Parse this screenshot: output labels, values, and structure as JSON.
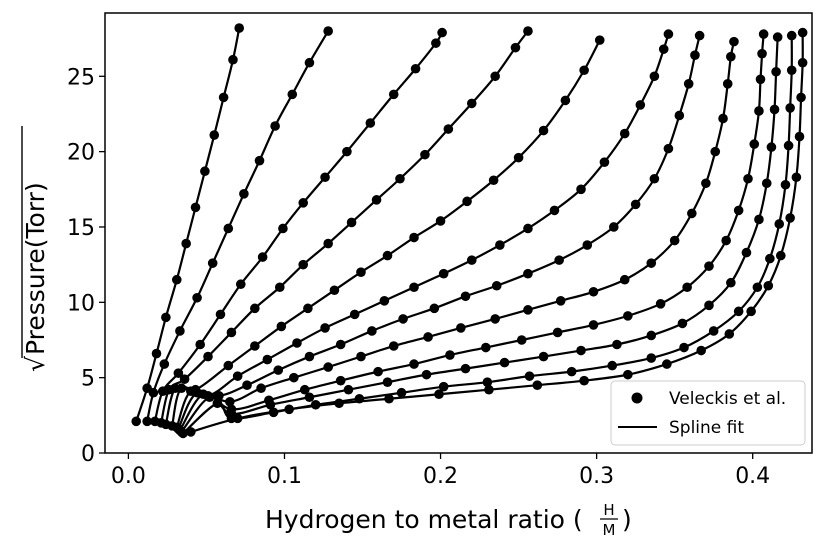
{
  "chart_data": {
    "type": "line",
    "title": "",
    "xlabel": "Hydrogen to metal ratio (",
    "xlabel_frac_num": "H",
    "xlabel_frac_den": "M",
    "xlabel_close": ")",
    "ylabel": "Pressure(Torr)",
    "ylabel_prefix": "√",
    "xlim": [
      -0.015,
      0.438
    ],
    "ylim": [
      0,
      29.2
    ],
    "xticks": [
      0.0,
      0.1,
      0.2,
      0.3,
      0.4
    ],
    "xtick_labels": [
      "0.0",
      "0.1",
      "0.2",
      "0.3",
      "0.4"
    ],
    "yticks": [
      0,
      5,
      10,
      15,
      20,
      25
    ],
    "ytick_labels": [
      "0",
      "5",
      "10",
      "15",
      "20",
      "25"
    ],
    "grid": false,
    "legend": {
      "placement": "lower-right",
      "entries": [
        {
          "label": "Veleckis et al.",
          "kind": "marker"
        },
        {
          "label": "Spline fit",
          "kind": "line"
        }
      ]
    },
    "series": [
      {
        "color": "#000000",
        "points": [
          [
            0.005,
            2.1
          ],
          [
            0.012,
            4.3
          ],
          [
            0.018,
            6.6
          ],
          [
            0.024,
            9.0
          ],
          [
            0.031,
            11.5
          ],
          [
            0.037,
            13.9
          ],
          [
            0.043,
            16.3
          ],
          [
            0.049,
            18.7
          ],
          [
            0.055,
            21.1
          ],
          [
            0.061,
            23.6
          ],
          [
            0.067,
            26.1
          ],
          [
            0.071,
            28.2
          ]
        ]
      },
      {
        "color": "#000000",
        "points": [
          [
            0.012,
            2.1
          ],
          [
            0.016,
            4.0
          ],
          [
            0.023,
            5.9
          ],
          [
            0.033,
            8.1
          ],
          [
            0.044,
            10.3
          ],
          [
            0.054,
            12.6
          ],
          [
            0.064,
            14.9
          ],
          [
            0.074,
            17.2
          ],
          [
            0.084,
            19.4
          ],
          [
            0.094,
            21.7
          ],
          [
            0.105,
            23.8
          ],
          [
            0.116,
            25.9
          ],
          [
            0.128,
            28.0
          ]
        ]
      },
      {
        "color": "#000000",
        "points": [
          [
            0.017,
            2.1
          ],
          [
            0.022,
            4.1
          ],
          [
            0.032,
            5.3
          ],
          [
            0.046,
            7.2
          ],
          [
            0.059,
            9.2
          ],
          [
            0.072,
            11.2
          ],
          [
            0.086,
            13.0
          ],
          [
            0.099,
            14.9
          ],
          [
            0.112,
            16.6
          ],
          [
            0.126,
            18.3
          ],
          [
            0.14,
            20.0
          ],
          [
            0.155,
            21.9
          ],
          [
            0.17,
            23.8
          ],
          [
            0.184,
            25.5
          ],
          [
            0.197,
            27.2
          ],
          [
            0.201,
            27.9
          ]
        ]
      },
      {
        "color": "#000000",
        "points": [
          [
            0.021,
            2.0
          ],
          [
            0.026,
            4.2
          ],
          [
            0.036,
            4.9
          ],
          [
            0.051,
            6.4
          ],
          [
            0.066,
            8.0
          ],
          [
            0.081,
            9.6
          ],
          [
            0.097,
            11.0
          ],
          [
            0.112,
            12.5
          ],
          [
            0.128,
            13.9
          ],
          [
            0.143,
            15.3
          ],
          [
            0.159,
            16.8
          ],
          [
            0.174,
            18.2
          ],
          [
            0.19,
            19.8
          ],
          [
            0.205,
            21.5
          ],
          [
            0.22,
            23.2
          ],
          [
            0.235,
            25.0
          ],
          [
            0.248,
            26.9
          ],
          [
            0.256,
            28.0
          ]
        ]
      },
      {
        "color": "#000000",
        "points": [
          [
            0.024,
            1.9
          ],
          [
            0.03,
            4.3
          ],
          [
            0.043,
            4.2
          ],
          [
            0.064,
            5.8
          ],
          [
            0.081,
            7.1
          ],
          [
            0.098,
            8.4
          ],
          [
            0.115,
            9.6
          ],
          [
            0.132,
            10.8
          ],
          [
            0.149,
            12.0
          ],
          [
            0.166,
            13.1
          ],
          [
            0.183,
            14.3
          ],
          [
            0.2,
            15.4
          ],
          [
            0.217,
            16.7
          ],
          [
            0.234,
            18.1
          ],
          [
            0.25,
            19.6
          ],
          [
            0.266,
            21.4
          ],
          [
            0.28,
            23.4
          ],
          [
            0.292,
            25.4
          ],
          [
            0.302,
            27.4
          ]
        ]
      },
      {
        "color": "#000000",
        "points": [
          [
            0.028,
            1.8
          ],
          [
            0.034,
            4.3
          ],
          [
            0.051,
            3.8
          ],
          [
            0.07,
            5.1
          ],
          [
            0.089,
            6.2
          ],
          [
            0.108,
            7.3
          ],
          [
            0.126,
            8.3
          ],
          [
            0.145,
            9.2
          ],
          [
            0.164,
            10.1
          ],
          [
            0.183,
            11.0
          ],
          [
            0.202,
            11.9
          ],
          [
            0.22,
            12.8
          ],
          [
            0.238,
            13.8
          ],
          [
            0.256,
            14.9
          ],
          [
            0.273,
            16.1
          ],
          [
            0.29,
            17.5
          ],
          [
            0.305,
            19.3
          ],
          [
            0.318,
            21.2
          ],
          [
            0.328,
            23.1
          ],
          [
            0.337,
            25.0
          ],
          [
            0.343,
            26.8
          ],
          [
            0.346,
            27.8
          ]
        ]
      },
      {
        "color": "#000000",
        "points": [
          [
            0.031,
            1.7
          ],
          [
            0.04,
            4.1
          ],
          [
            0.058,
            3.8
          ],
          [
            0.076,
            4.5
          ],
          [
            0.096,
            5.5
          ],
          [
            0.116,
            6.4
          ],
          [
            0.136,
            7.2
          ],
          [
            0.156,
            8.1
          ],
          [
            0.176,
            8.9
          ],
          [
            0.196,
            9.6
          ],
          [
            0.216,
            10.4
          ],
          [
            0.236,
            11.1
          ],
          [
            0.256,
            11.9
          ],
          [
            0.276,
            12.8
          ],
          [
            0.294,
            13.8
          ],
          [
            0.311,
            15.0
          ],
          [
            0.325,
            16.5
          ],
          [
            0.337,
            18.2
          ],
          [
            0.346,
            20.2
          ],
          [
            0.353,
            22.4
          ],
          [
            0.359,
            24.5
          ],
          [
            0.363,
            26.4
          ],
          [
            0.366,
            27.7
          ]
        ]
      },
      {
        "color": "#000000",
        "points": [
          [
            0.032,
            1.6
          ],
          [
            0.044,
            4.0
          ],
          [
            0.065,
            3.4
          ],
          [
            0.085,
            4.3
          ],
          [
            0.106,
            5.0
          ],
          [
            0.128,
            5.7
          ],
          [
            0.149,
            6.4
          ],
          [
            0.17,
            7.1
          ],
          [
            0.192,
            7.7
          ],
          [
            0.213,
            8.3
          ],
          [
            0.235,
            8.9
          ],
          [
            0.256,
            9.5
          ],
          [
            0.277,
            10.1
          ],
          [
            0.298,
            10.7
          ],
          [
            0.318,
            11.5
          ],
          [
            0.335,
            12.6
          ],
          [
            0.35,
            14.1
          ],
          [
            0.361,
            15.9
          ],
          [
            0.37,
            17.9
          ],
          [
            0.376,
            20.0
          ],
          [
            0.381,
            22.2
          ],
          [
            0.384,
            24.5
          ],
          [
            0.386,
            26.3
          ],
          [
            0.388,
            27.3
          ]
        ]
      },
      {
        "color": "#000000",
        "points": [
          [
            0.033,
            1.5
          ],
          [
            0.048,
            3.9
          ],
          [
            0.066,
            2.9
          ],
          [
            0.09,
            3.5
          ],
          [
            0.113,
            4.2
          ],
          [
            0.136,
            4.8
          ],
          [
            0.16,
            5.4
          ],
          [
            0.183,
            5.9
          ],
          [
            0.206,
            6.5
          ],
          [
            0.229,
            7.0
          ],
          [
            0.252,
            7.5
          ],
          [
            0.275,
            8.0
          ],
          [
            0.298,
            8.5
          ],
          [
            0.32,
            9.1
          ],
          [
            0.341,
            9.9
          ],
          [
            0.358,
            11.0
          ],
          [
            0.372,
            12.4
          ],
          [
            0.383,
            14.1
          ],
          [
            0.391,
            16.1
          ],
          [
            0.397,
            18.2
          ],
          [
            0.401,
            20.5
          ],
          [
            0.404,
            22.7
          ],
          [
            0.405,
            24.8
          ],
          [
            0.406,
            26.5
          ],
          [
            0.407,
            27.8
          ]
        ]
      },
      {
        "color": "#000000",
        "points": [
          [
            0.034,
            1.4
          ],
          [
            0.052,
            3.7
          ],
          [
            0.066,
            2.6
          ],
          [
            0.091,
            3.2
          ],
          [
            0.116,
            3.7
          ],
          [
            0.141,
            4.2
          ],
          [
            0.166,
            4.7
          ],
          [
            0.191,
            5.2
          ],
          [
            0.216,
            5.6
          ],
          [
            0.241,
            6.0
          ],
          [
            0.266,
            6.4
          ],
          [
            0.29,
            6.8
          ],
          [
            0.313,
            7.2
          ],
          [
            0.335,
            7.8
          ],
          [
            0.355,
            8.6
          ],
          [
            0.372,
            9.8
          ],
          [
            0.386,
            11.3
          ],
          [
            0.396,
            13.3
          ],
          [
            0.404,
            15.5
          ],
          [
            0.409,
            17.9
          ],
          [
            0.412,
            20.3
          ],
          [
            0.414,
            22.8
          ],
          [
            0.415,
            25.3
          ],
          [
            0.416,
            27.6
          ]
        ]
      },
      {
        "color": "#000000",
        "points": [
          [
            0.035,
            1.3
          ],
          [
            0.057,
            3.3
          ],
          [
            0.066,
            2.3
          ],
          [
            0.093,
            2.7
          ],
          [
            0.12,
            3.2
          ],
          [
            0.148,
            3.6
          ],
          [
            0.175,
            4.0
          ],
          [
            0.202,
            4.4
          ],
          [
            0.23,
            4.7
          ],
          [
            0.257,
            5.1
          ],
          [
            0.284,
            5.4
          ],
          [
            0.31,
            5.8
          ],
          [
            0.335,
            6.3
          ],
          [
            0.356,
            7.0
          ],
          [
            0.375,
            8.1
          ],
          [
            0.391,
            9.4
          ],
          [
            0.403,
            11.0
          ],
          [
            0.411,
            12.9
          ],
          [
            0.417,
            15.2
          ],
          [
            0.421,
            17.8
          ],
          [
            0.423,
            20.4
          ],
          [
            0.424,
            22.9
          ],
          [
            0.425,
            25.4
          ],
          [
            0.425,
            27.7
          ]
        ]
      },
      {
        "color": "#000000",
        "points": [
          [
            0.04,
            1.4
          ],
          [
            0.07,
            2.3
          ],
          [
            0.103,
            2.9
          ],
          [
            0.135,
            3.3
          ],
          [
            0.167,
            3.6
          ],
          [
            0.199,
            3.9
          ],
          [
            0.231,
            4.2
          ],
          [
            0.262,
            4.5
          ],
          [
            0.292,
            4.8
          ],
          [
            0.32,
            5.2
          ],
          [
            0.345,
            5.9
          ],
          [
            0.367,
            6.8
          ],
          [
            0.385,
            7.9
          ],
          [
            0.399,
            9.4
          ],
          [
            0.41,
            11.1
          ],
          [
            0.418,
            13.1
          ],
          [
            0.424,
            15.6
          ],
          [
            0.428,
            18.3
          ],
          [
            0.43,
            21.0
          ],
          [
            0.431,
            23.6
          ],
          [
            0.432,
            25.9
          ],
          [
            0.432,
            27.9
          ]
        ]
      }
    ]
  }
}
